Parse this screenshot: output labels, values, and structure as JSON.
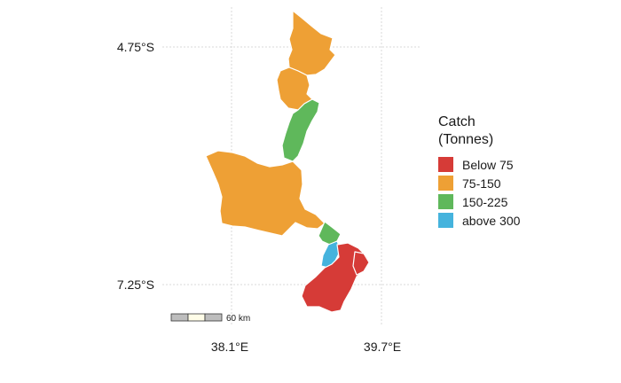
{
  "map": {
    "lat_labels": [
      "4.75°S",
      "7.25°S"
    ],
    "lon_labels": [
      "38.1°E",
      "39.7°E"
    ],
    "scale_bar_label": "60 km",
    "colors": {
      "below_75": "#d63b37",
      "75_150": "#eea035",
      "150_225": "#5fb85b",
      "above_300": "#45b3dd",
      "grid": "#d9d9d9",
      "scale_dark": "#bdbdbd",
      "scale_light": "#fffde8"
    }
  },
  "legend": {
    "title_line1": "Catch",
    "title_line2": "(Tonnes)",
    "items": [
      {
        "label": "Below 75",
        "color": "#d63b37"
      },
      {
        "label": "75-150",
        "color": "#eea035"
      },
      {
        "label": "150-225",
        "color": "#5fb85b"
      },
      {
        "label": "above 300",
        "color": "#45b3dd"
      }
    ]
  }
}
